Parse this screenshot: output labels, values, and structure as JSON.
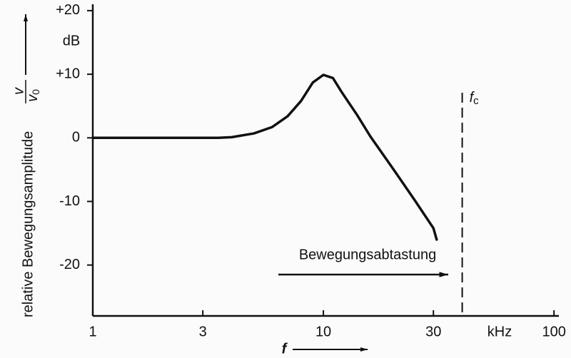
{
  "chart_data": {
    "type": "line",
    "y_label": "relative Bewegungsamplitude",
    "y_label_fraction": {
      "numerator": "v",
      "denominator": {
        "text": "v",
        "subscript": "0"
      }
    },
    "y_unit": "dB",
    "x_label": "f",
    "x_unit": "kHz",
    "annotation": "Bewegungsabtastung",
    "cutoff": {
      "x": 40,
      "label": {
        "text": "f",
        "subscript": "c"
      }
    },
    "x": [
      1,
      2,
      3,
      3.5,
      4,
      5,
      6,
      7,
      8,
      9,
      10,
      11,
      12,
      14,
      16,
      20,
      25,
      30,
      31
    ],
    "series": [
      {
        "name": "v/v0",
        "color": "#111111",
        "values": [
          0,
          0,
          0,
          0,
          0.1,
          0.7,
          1.7,
          3.4,
          5.8,
          8.7,
          9.9,
          9.4,
          7.2,
          3.6,
          0.2,
          -4.8,
          -9.9,
          -14.2,
          -16
        ]
      }
    ],
    "xlog": true,
    "xlim": [
      1,
      105
    ],
    "ylim": [
      -28,
      21
    ],
    "xticks": [
      1,
      3,
      10,
      30,
      100
    ],
    "yticks": [
      {
        "value": 20,
        "label": "+20"
      },
      {
        "value": 10,
        "label": "+10"
      },
      0,
      -10,
      -20
    ]
  }
}
